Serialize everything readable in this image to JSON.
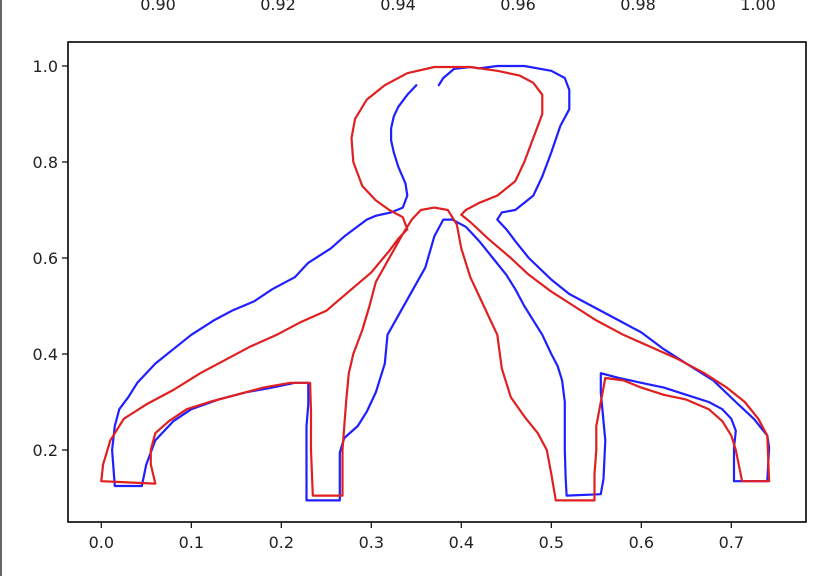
{
  "chart_data": [
    {
      "type": "line",
      "title": "",
      "xlabel": "",
      "ylabel": "",
      "xlim": [
        0.885,
        1.008
      ],
      "x_ticks": [
        "0.90",
        "0.92",
        "0.94",
        "0.96",
        "0.98",
        "1.00"
      ],
      "x_tick_values": [
        0.9,
        0.92,
        0.94,
        0.96,
        0.98,
        1.0
      ],
      "note": "cropped top axis strip; only tick labels visible"
    },
    {
      "type": "line",
      "title": "",
      "xlabel": "",
      "ylabel": "",
      "xlim": [
        -0.037,
        0.783
      ],
      "ylim": [
        0.05,
        1.05
      ],
      "grid": false,
      "legend": "none",
      "x_ticks": [
        "0.0",
        "0.1",
        "0.2",
        "0.3",
        "0.4",
        "0.5",
        "0.6",
        "0.7"
      ],
      "x_tick_values": [
        0.0,
        0.1,
        0.2,
        0.3,
        0.4,
        0.5,
        0.6,
        0.7
      ],
      "y_ticks": [
        "0.2",
        "0.4",
        "0.6",
        "0.8",
        "1.0"
      ],
      "y_tick_values": [
        0.2,
        0.4,
        0.6,
        0.8,
        1.0
      ],
      "series": [
        {
          "color": "#1f1fff",
          "segments": [
            [
              [
                0.045,
                0.125
              ],
              [
                0.05,
                0.17
              ],
              [
                0.06,
                0.22
              ],
              [
                0.08,
                0.26
              ],
              [
                0.1,
                0.285
              ],
              [
                0.13,
                0.305
              ],
              [
                0.16,
                0.32
              ],
              [
                0.19,
                0.33
              ],
              [
                0.215,
                0.34
              ],
              [
                0.23,
                0.34
              ],
              [
                0.23,
                0.295
              ],
              [
                0.228,
                0.25
              ],
              [
                0.228,
                0.2
              ],
              [
                0.228,
                0.15
              ],
              [
                0.228,
                0.095
              ],
              [
                0.265,
                0.095
              ],
              [
                0.265,
                0.15
              ],
              [
                0.265,
                0.195
              ],
              [
                0.27,
                0.225
              ],
              [
                0.285,
                0.25
              ],
              [
                0.295,
                0.28
              ],
              [
                0.305,
                0.32
              ],
              [
                0.315,
                0.38
              ],
              [
                0.318,
                0.44
              ],
              [
                0.33,
                0.48
              ],
              [
                0.345,
                0.53
              ],
              [
                0.36,
                0.58
              ],
              [
                0.37,
                0.645
              ],
              [
                0.38,
                0.68
              ],
              [
                0.39,
                0.68
              ],
              [
                0.405,
                0.665
              ],
              [
                0.42,
                0.635
              ],
              [
                0.435,
                0.6
              ],
              [
                0.45,
                0.565
              ],
              [
                0.46,
                0.535
              ],
              [
                0.47,
                0.5
              ],
              [
                0.48,
                0.47
              ],
              [
                0.49,
                0.44
              ],
              [
                0.5,
                0.4
              ],
              [
                0.507,
                0.375
              ],
              [
                0.512,
                0.345
              ],
              [
                0.515,
                0.3
              ],
              [
                0.515,
                0.2
              ],
              [
                0.516,
                0.14
              ],
              [
                0.517,
                0.105
              ],
              [
                0.555,
                0.108
              ],
              [
                0.558,
                0.14
              ],
              [
                0.56,
                0.22
              ],
              [
                0.555,
                0.32
              ],
              [
                0.555,
                0.36
              ],
              [
                0.575,
                0.35
              ],
              [
                0.6,
                0.34
              ],
              [
                0.625,
                0.33
              ],
              [
                0.65,
                0.315
              ],
              [
                0.675,
                0.3
              ],
              [
                0.69,
                0.285
              ],
              [
                0.7,
                0.265
              ],
              [
                0.705,
                0.24
              ],
              [
                0.703,
                0.205
              ],
              [
                0.703,
                0.135
              ],
              [
                0.74,
                0.135
              ],
              [
                0.742,
                0.205
              ],
              [
                0.74,
                0.23
              ],
              [
                0.725,
                0.265
              ],
              [
                0.705,
                0.3
              ],
              [
                0.68,
                0.345
              ],
              [
                0.65,
                0.38
              ],
              [
                0.625,
                0.41
              ],
              [
                0.6,
                0.445
              ],
              [
                0.575,
                0.47
              ],
              [
                0.545,
                0.5
              ],
              [
                0.52,
                0.525
              ],
              [
                0.5,
                0.555
              ],
              [
                0.475,
                0.6
              ],
              [
                0.46,
                0.635
              ],
              [
                0.45,
                0.66
              ],
              [
                0.44,
                0.68
              ],
              [
                0.445,
                0.695
              ],
              [
                0.46,
                0.7
              ],
              [
                0.48,
                0.73
              ],
              [
                0.49,
                0.77
              ],
              [
                0.5,
                0.82
              ],
              [
                0.51,
                0.875
              ],
              [
                0.52,
                0.91
              ],
              [
                0.52,
                0.95
              ],
              [
                0.515,
                0.975
              ],
              [
                0.5,
                0.99
              ],
              [
                0.47,
                1.0
              ],
              [
                0.44,
                1.0
              ],
              [
                0.42,
                0.995
              ],
              [
                0.41,
                0.998
              ],
              [
                0.392,
                0.994
              ],
              [
                0.38,
                0.975
              ],
              [
                0.375,
                0.96
              ]
            ],
            [
              [
                0.35,
                0.96
              ],
              [
                0.34,
                0.94
              ],
              [
                0.33,
                0.915
              ],
              [
                0.325,
                0.895
              ],
              [
                0.322,
                0.87
              ],
              [
                0.322,
                0.845
              ],
              [
                0.325,
                0.82
              ],
              [
                0.33,
                0.79
              ],
              [
                0.338,
                0.755
              ],
              [
                0.34,
                0.73
              ],
              [
                0.335,
                0.705
              ],
              [
                0.322,
                0.695
              ],
              [
                0.305,
                0.688
              ],
              [
                0.295,
                0.68
              ],
              [
                0.27,
                0.645
              ],
              [
                0.255,
                0.62
              ],
              [
                0.23,
                0.59
              ],
              [
                0.215,
                0.56
              ],
              [
                0.19,
                0.535
              ],
              [
                0.17,
                0.51
              ],
              [
                0.145,
                0.49
              ],
              [
                0.125,
                0.47
              ],
              [
                0.1,
                0.44
              ],
              [
                0.08,
                0.41
              ],
              [
                0.06,
                0.38
              ],
              [
                0.05,
                0.36
              ],
              [
                0.04,
                0.34
              ],
              [
                0.03,
                0.31
              ],
              [
                0.02,
                0.285
              ],
              [
                0.015,
                0.25
              ],
              [
                0.012,
                0.2
              ],
              [
                0.015,
                0.125
              ],
              [
                0.045,
                0.125
              ]
            ]
          ]
        },
        {
          "color": "#e02020",
          "segments": [
            [
              [
                0.0,
                0.135
              ],
              [
                0.002,
                0.17
              ],
              [
                0.01,
                0.22
              ],
              [
                0.025,
                0.265
              ],
              [
                0.05,
                0.295
              ],
              [
                0.08,
                0.325
              ],
              [
                0.11,
                0.36
              ],
              [
                0.14,
                0.39
              ],
              [
                0.165,
                0.415
              ],
              [
                0.195,
                0.44
              ],
              [
                0.22,
                0.465
              ],
              [
                0.25,
                0.49
              ],
              [
                0.275,
                0.53
              ],
              [
                0.3,
                0.57
              ],
              [
                0.32,
                0.615
              ],
              [
                0.33,
                0.64
              ],
              [
                0.34,
                0.66
              ],
              [
                0.335,
                0.685
              ],
              [
                0.32,
                0.7
              ],
              [
                0.305,
                0.72
              ],
              [
                0.29,
                0.75
              ],
              [
                0.28,
                0.8
              ],
              [
                0.278,
                0.85
              ],
              [
                0.282,
                0.89
              ],
              [
                0.295,
                0.93
              ],
              [
                0.315,
                0.96
              ],
              [
                0.34,
                0.985
              ],
              [
                0.37,
                0.998
              ],
              [
                0.41,
                0.998
              ],
              [
                0.44,
                0.99
              ],
              [
                0.465,
                0.98
              ],
              [
                0.48,
                0.965
              ],
              [
                0.49,
                0.94
              ],
              [
                0.49,
                0.9
              ],
              [
                0.48,
                0.85
              ],
              [
                0.47,
                0.8
              ],
              [
                0.46,
                0.76
              ],
              [
                0.44,
                0.73
              ],
              [
                0.42,
                0.715
              ],
              [
                0.405,
                0.7
              ],
              [
                0.4,
                0.69
              ],
              [
                0.41,
                0.675
              ],
              [
                0.43,
                0.64
              ],
              [
                0.455,
                0.6
              ],
              [
                0.475,
                0.565
              ],
              [
                0.5,
                0.53
              ],
              [
                0.525,
                0.5
              ],
              [
                0.55,
                0.47
              ],
              [
                0.58,
                0.44
              ],
              [
                0.61,
                0.415
              ],
              [
                0.64,
                0.39
              ],
              [
                0.67,
                0.36
              ],
              [
                0.695,
                0.33
              ],
              [
                0.715,
                0.3
              ],
              [
                0.73,
                0.265
              ],
              [
                0.74,
                0.23
              ],
              [
                0.742,
                0.135
              ],
              [
                0.712,
                0.135
              ],
              [
                0.705,
                0.2
              ],
              [
                0.7,
                0.23
              ],
              [
                0.69,
                0.26
              ],
              [
                0.675,
                0.285
              ],
              [
                0.65,
                0.305
              ],
              [
                0.625,
                0.315
              ],
              [
                0.6,
                0.33
              ],
              [
                0.58,
                0.345
              ],
              [
                0.56,
                0.35
              ],
              [
                0.555,
                0.3
              ],
              [
                0.55,
                0.25
              ],
              [
                0.55,
                0.2
              ],
              [
                0.548,
                0.15
              ],
              [
                0.548,
                0.095
              ],
              [
                0.505,
                0.095
              ],
              [
                0.5,
                0.15
              ],
              [
                0.495,
                0.2
              ],
              [
                0.485,
                0.235
              ],
              [
                0.47,
                0.27
              ],
              [
                0.455,
                0.31
              ],
              [
                0.445,
                0.37
              ],
              [
                0.44,
                0.44
              ],
              [
                0.43,
                0.48
              ],
              [
                0.42,
                0.52
              ],
              [
                0.41,
                0.56
              ],
              [
                0.4,
                0.62
              ],
              [
                0.395,
                0.67
              ],
              [
                0.385,
                0.7
              ],
              [
                0.37,
                0.705
              ],
              [
                0.355,
                0.7
              ],
              [
                0.345,
                0.68
              ],
              [
                0.335,
                0.65
              ],
              [
                0.32,
                0.6
              ],
              [
                0.305,
                0.55
              ],
              [
                0.298,
                0.5
              ],
              [
                0.29,
                0.45
              ],
              [
                0.28,
                0.4
              ],
              [
                0.275,
                0.36
              ],
              [
                0.272,
                0.3
              ],
              [
                0.268,
                0.2
              ],
              [
                0.268,
                0.105
              ],
              [
                0.235,
                0.105
              ],
              [
                0.233,
                0.2
              ],
              [
                0.233,
                0.28
              ],
              [
                0.232,
                0.34
              ],
              [
                0.21,
                0.34
              ],
              [
                0.18,
                0.33
              ],
              [
                0.15,
                0.315
              ],
              [
                0.12,
                0.3
              ],
              [
                0.095,
                0.285
              ],
              [
                0.075,
                0.26
              ],
              [
                0.06,
                0.235
              ],
              [
                0.055,
                0.2
              ],
              [
                0.055,
                0.17
              ],
              [
                0.06,
                0.13
              ],
              [
                0.0,
                0.135
              ]
            ]
          ]
        }
      ]
    }
  ]
}
